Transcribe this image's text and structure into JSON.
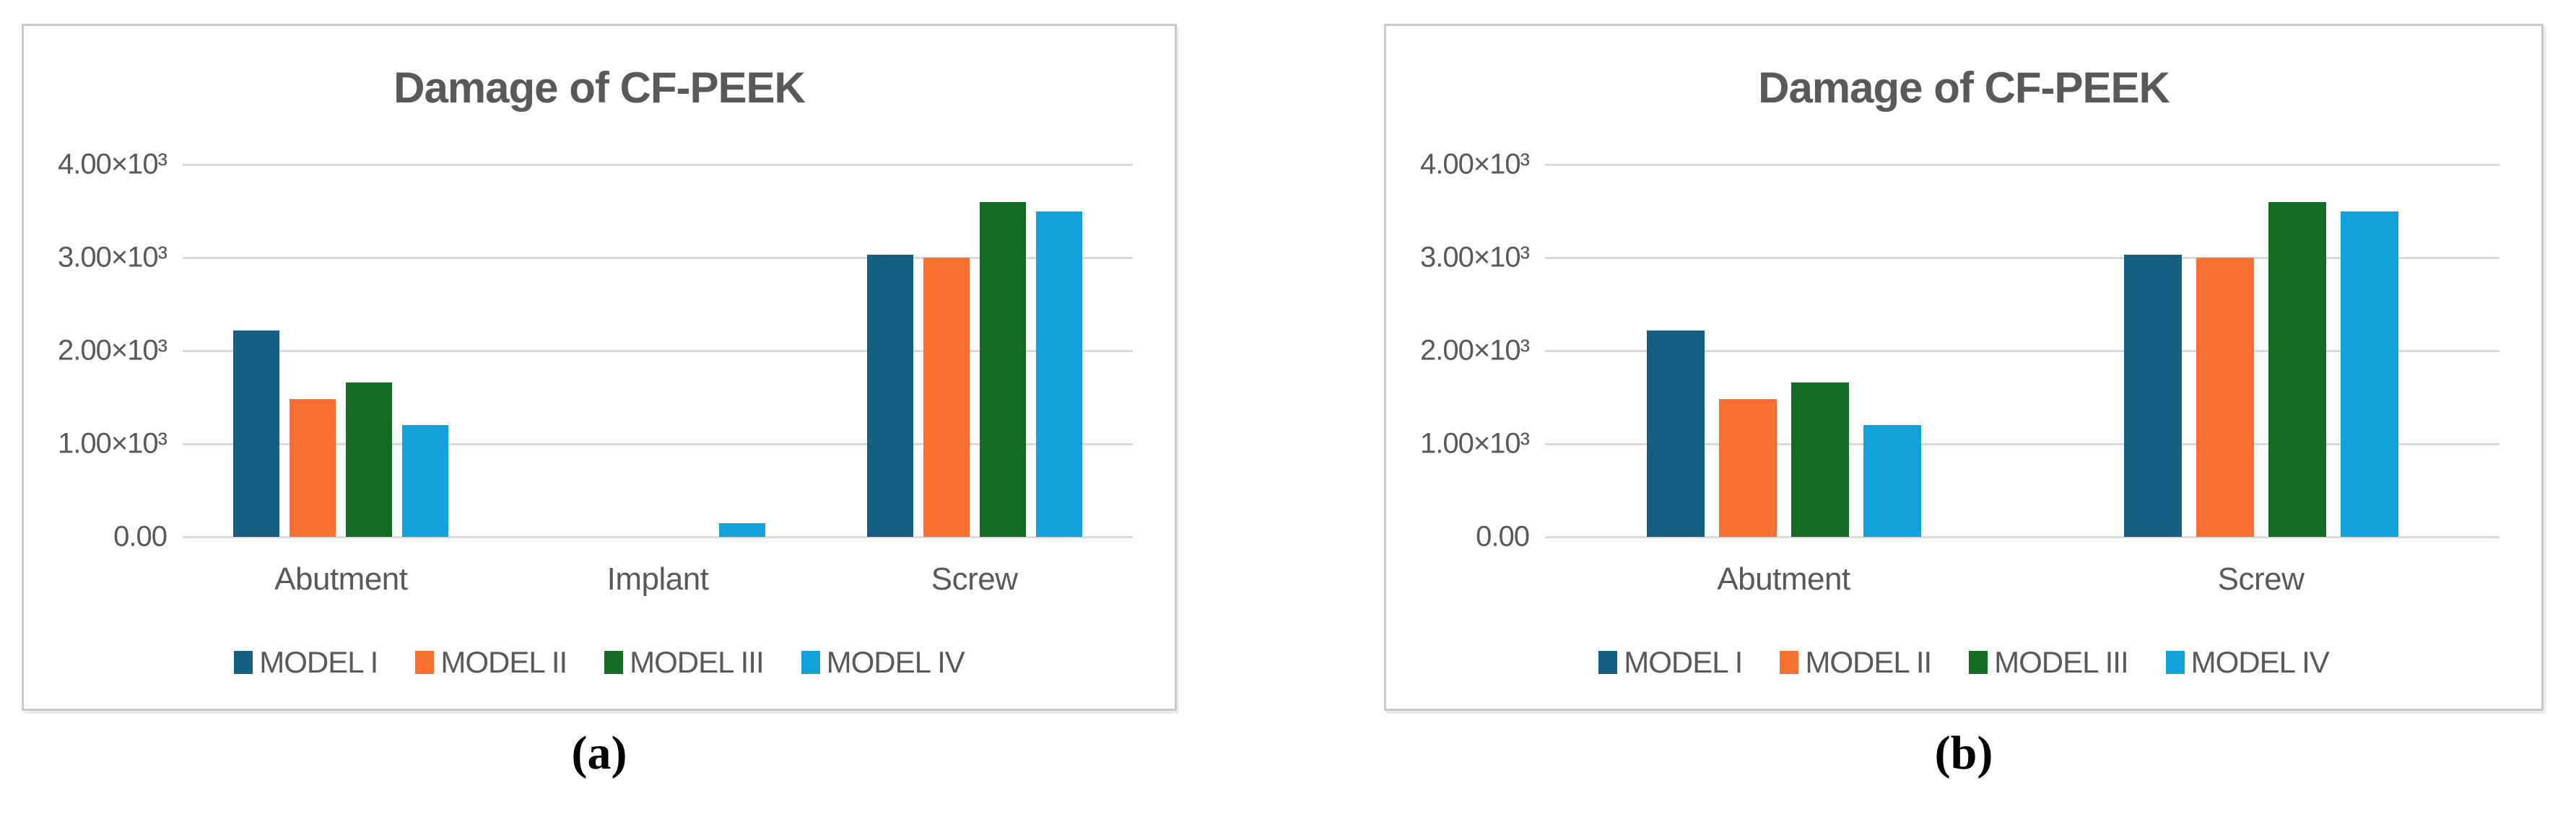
{
  "figure": {
    "caption_a": "(a)",
    "caption_b": "(b)"
  },
  "colors": {
    "model1": "#156082",
    "model2": "#F97130",
    "model3": "#146C24",
    "model4": "#14A0DA",
    "grid": "#D9D9D9",
    "text": "#595959",
    "border": "#C9C9C9"
  },
  "chart_data": [
    {
      "id": "a",
      "type": "bar",
      "title": "Damage of CF-PEEK",
      "categories": [
        "Abutment",
        "Implant",
        "Screw"
      ],
      "series": [
        {
          "name": "MODEL I",
          "color_key": "model1",
          "values": [
            2220,
            0,
            3030
          ]
        },
        {
          "name": "MODEL II",
          "color_key": "model2",
          "values": [
            1480,
            0,
            3000
          ]
        },
        {
          "name": "MODEL III",
          "color_key": "model3",
          "values": [
            1660,
            0,
            3600
          ]
        },
        {
          "name": "MODEL IV",
          "color_key": "model4",
          "values": [
            1200,
            150,
            3500
          ]
        }
      ],
      "y_ticks": [
        "4.00×10³",
        "3.00×10³",
        "2.00×10³",
        "1.00×10³",
        "0.00"
      ],
      "ylim": [
        0,
        4000
      ],
      "grid": true,
      "legend_position": "bottom"
    },
    {
      "id": "b",
      "type": "bar",
      "title": "Damage of CF-PEEK",
      "categories": [
        "Abutment",
        "Screw"
      ],
      "series": [
        {
          "name": "MODEL I",
          "color_key": "model1",
          "values": [
            2220,
            3030
          ]
        },
        {
          "name": "MODEL II",
          "color_key": "model2",
          "values": [
            1480,
            3000
          ]
        },
        {
          "name": "MODEL III",
          "color_key": "model3",
          "values": [
            1660,
            3600
          ]
        },
        {
          "name": "MODEL IV",
          "color_key": "model4",
          "values": [
            1200,
            3500
          ]
        }
      ],
      "y_ticks": [
        "4.00×10³",
        "3.00×10³",
        "2.00×10³",
        "1.00×10³",
        "0.00"
      ],
      "ylim": [
        0,
        4000
      ],
      "grid": true,
      "legend_position": "bottom"
    }
  ]
}
